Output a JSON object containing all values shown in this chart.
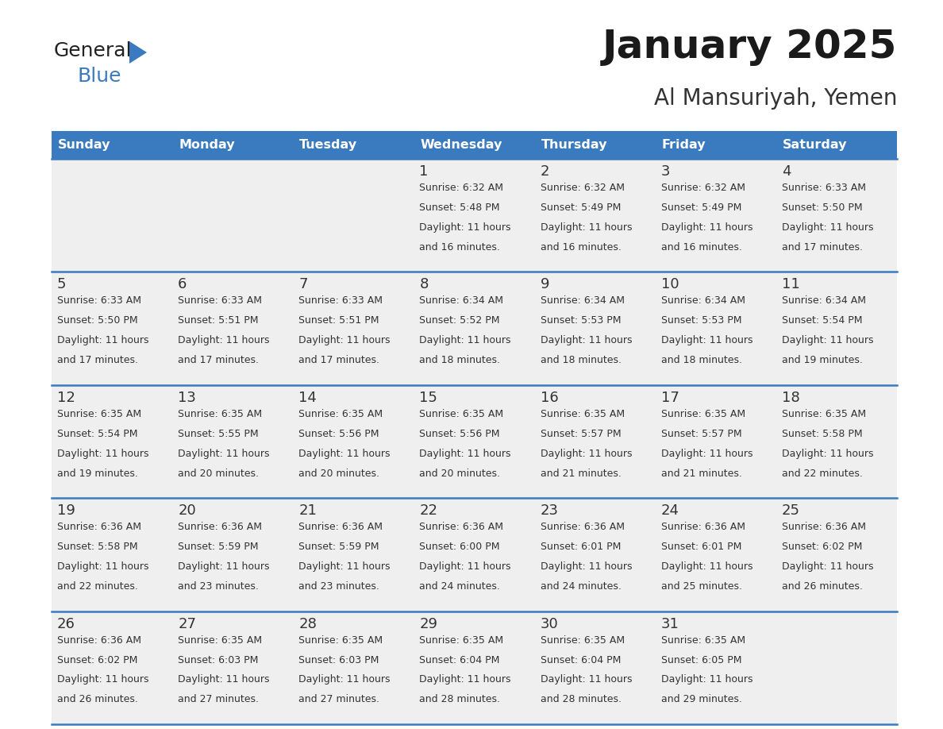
{
  "title": "January 2025",
  "subtitle": "Al Mansuriyah, Yemen",
  "header_color": "#3a7bbf",
  "header_text_color": "#ffffff",
  "cell_bg_color": "#efefef",
  "divider_color": "#3a7bbf",
  "text_color": "#333333",
  "days_of_week": [
    "Sunday",
    "Monday",
    "Tuesday",
    "Wednesday",
    "Thursday",
    "Friday",
    "Saturday"
  ],
  "calendar_data": [
    [
      {
        "day": "",
        "sunrise": "",
        "sunset": "",
        "daylight": ""
      },
      {
        "day": "",
        "sunrise": "",
        "sunset": "",
        "daylight": ""
      },
      {
        "day": "",
        "sunrise": "",
        "sunset": "",
        "daylight": ""
      },
      {
        "day": "1",
        "sunrise": "6:32 AM",
        "sunset": "5:48 PM",
        "daylight": "11 hours and 16 minutes."
      },
      {
        "day": "2",
        "sunrise": "6:32 AM",
        "sunset": "5:49 PM",
        "daylight": "11 hours and 16 minutes."
      },
      {
        "day": "3",
        "sunrise": "6:32 AM",
        "sunset": "5:49 PM",
        "daylight": "11 hours and 16 minutes."
      },
      {
        "day": "4",
        "sunrise": "6:33 AM",
        "sunset": "5:50 PM",
        "daylight": "11 hours and 17 minutes."
      }
    ],
    [
      {
        "day": "5",
        "sunrise": "6:33 AM",
        "sunset": "5:50 PM",
        "daylight": "11 hours and 17 minutes."
      },
      {
        "day": "6",
        "sunrise": "6:33 AM",
        "sunset": "5:51 PM",
        "daylight": "11 hours and 17 minutes."
      },
      {
        "day": "7",
        "sunrise": "6:33 AM",
        "sunset": "5:51 PM",
        "daylight": "11 hours and 17 minutes."
      },
      {
        "day": "8",
        "sunrise": "6:34 AM",
        "sunset": "5:52 PM",
        "daylight": "11 hours and 18 minutes."
      },
      {
        "day": "9",
        "sunrise": "6:34 AM",
        "sunset": "5:53 PM",
        "daylight": "11 hours and 18 minutes."
      },
      {
        "day": "10",
        "sunrise": "6:34 AM",
        "sunset": "5:53 PM",
        "daylight": "11 hours and 18 minutes."
      },
      {
        "day": "11",
        "sunrise": "6:34 AM",
        "sunset": "5:54 PM",
        "daylight": "11 hours and 19 minutes."
      }
    ],
    [
      {
        "day": "12",
        "sunrise": "6:35 AM",
        "sunset": "5:54 PM",
        "daylight": "11 hours and 19 minutes."
      },
      {
        "day": "13",
        "sunrise": "6:35 AM",
        "sunset": "5:55 PM",
        "daylight": "11 hours and 20 minutes."
      },
      {
        "day": "14",
        "sunrise": "6:35 AM",
        "sunset": "5:56 PM",
        "daylight": "11 hours and 20 minutes."
      },
      {
        "day": "15",
        "sunrise": "6:35 AM",
        "sunset": "5:56 PM",
        "daylight": "11 hours and 20 minutes."
      },
      {
        "day": "16",
        "sunrise": "6:35 AM",
        "sunset": "5:57 PM",
        "daylight": "11 hours and 21 minutes."
      },
      {
        "day": "17",
        "sunrise": "6:35 AM",
        "sunset": "5:57 PM",
        "daylight": "11 hours and 21 minutes."
      },
      {
        "day": "18",
        "sunrise": "6:35 AM",
        "sunset": "5:58 PM",
        "daylight": "11 hours and 22 minutes."
      }
    ],
    [
      {
        "day": "19",
        "sunrise": "6:36 AM",
        "sunset": "5:58 PM",
        "daylight": "11 hours and 22 minutes."
      },
      {
        "day": "20",
        "sunrise": "6:36 AM",
        "sunset": "5:59 PM",
        "daylight": "11 hours and 23 minutes."
      },
      {
        "day": "21",
        "sunrise": "6:36 AM",
        "sunset": "5:59 PM",
        "daylight": "11 hours and 23 minutes."
      },
      {
        "day": "22",
        "sunrise": "6:36 AM",
        "sunset": "6:00 PM",
        "daylight": "11 hours and 24 minutes."
      },
      {
        "day": "23",
        "sunrise": "6:36 AM",
        "sunset": "6:01 PM",
        "daylight": "11 hours and 24 minutes."
      },
      {
        "day": "24",
        "sunrise": "6:36 AM",
        "sunset": "6:01 PM",
        "daylight": "11 hours and 25 minutes."
      },
      {
        "day": "25",
        "sunrise": "6:36 AM",
        "sunset": "6:02 PM",
        "daylight": "11 hours and 26 minutes."
      }
    ],
    [
      {
        "day": "26",
        "sunrise": "6:36 AM",
        "sunset": "6:02 PM",
        "daylight": "11 hours and 26 minutes."
      },
      {
        "day": "27",
        "sunrise": "6:35 AM",
        "sunset": "6:03 PM",
        "daylight": "11 hours and 27 minutes."
      },
      {
        "day": "28",
        "sunrise": "6:35 AM",
        "sunset": "6:03 PM",
        "daylight": "11 hours and 27 minutes."
      },
      {
        "day": "29",
        "sunrise": "6:35 AM",
        "sunset": "6:04 PM",
        "daylight": "11 hours and 28 minutes."
      },
      {
        "day": "30",
        "sunrise": "6:35 AM",
        "sunset": "6:04 PM",
        "daylight": "11 hours and 28 minutes."
      },
      {
        "day": "31",
        "sunrise": "6:35 AM",
        "sunset": "6:05 PM",
        "daylight": "11 hours and 29 minutes."
      },
      {
        "day": "",
        "sunrise": "",
        "sunset": "",
        "daylight": ""
      }
    ]
  ],
  "logo_general_color": "#222222",
  "logo_blue_color": "#3a7bbf",
  "logo_triangle_color": "#3a7bbf"
}
